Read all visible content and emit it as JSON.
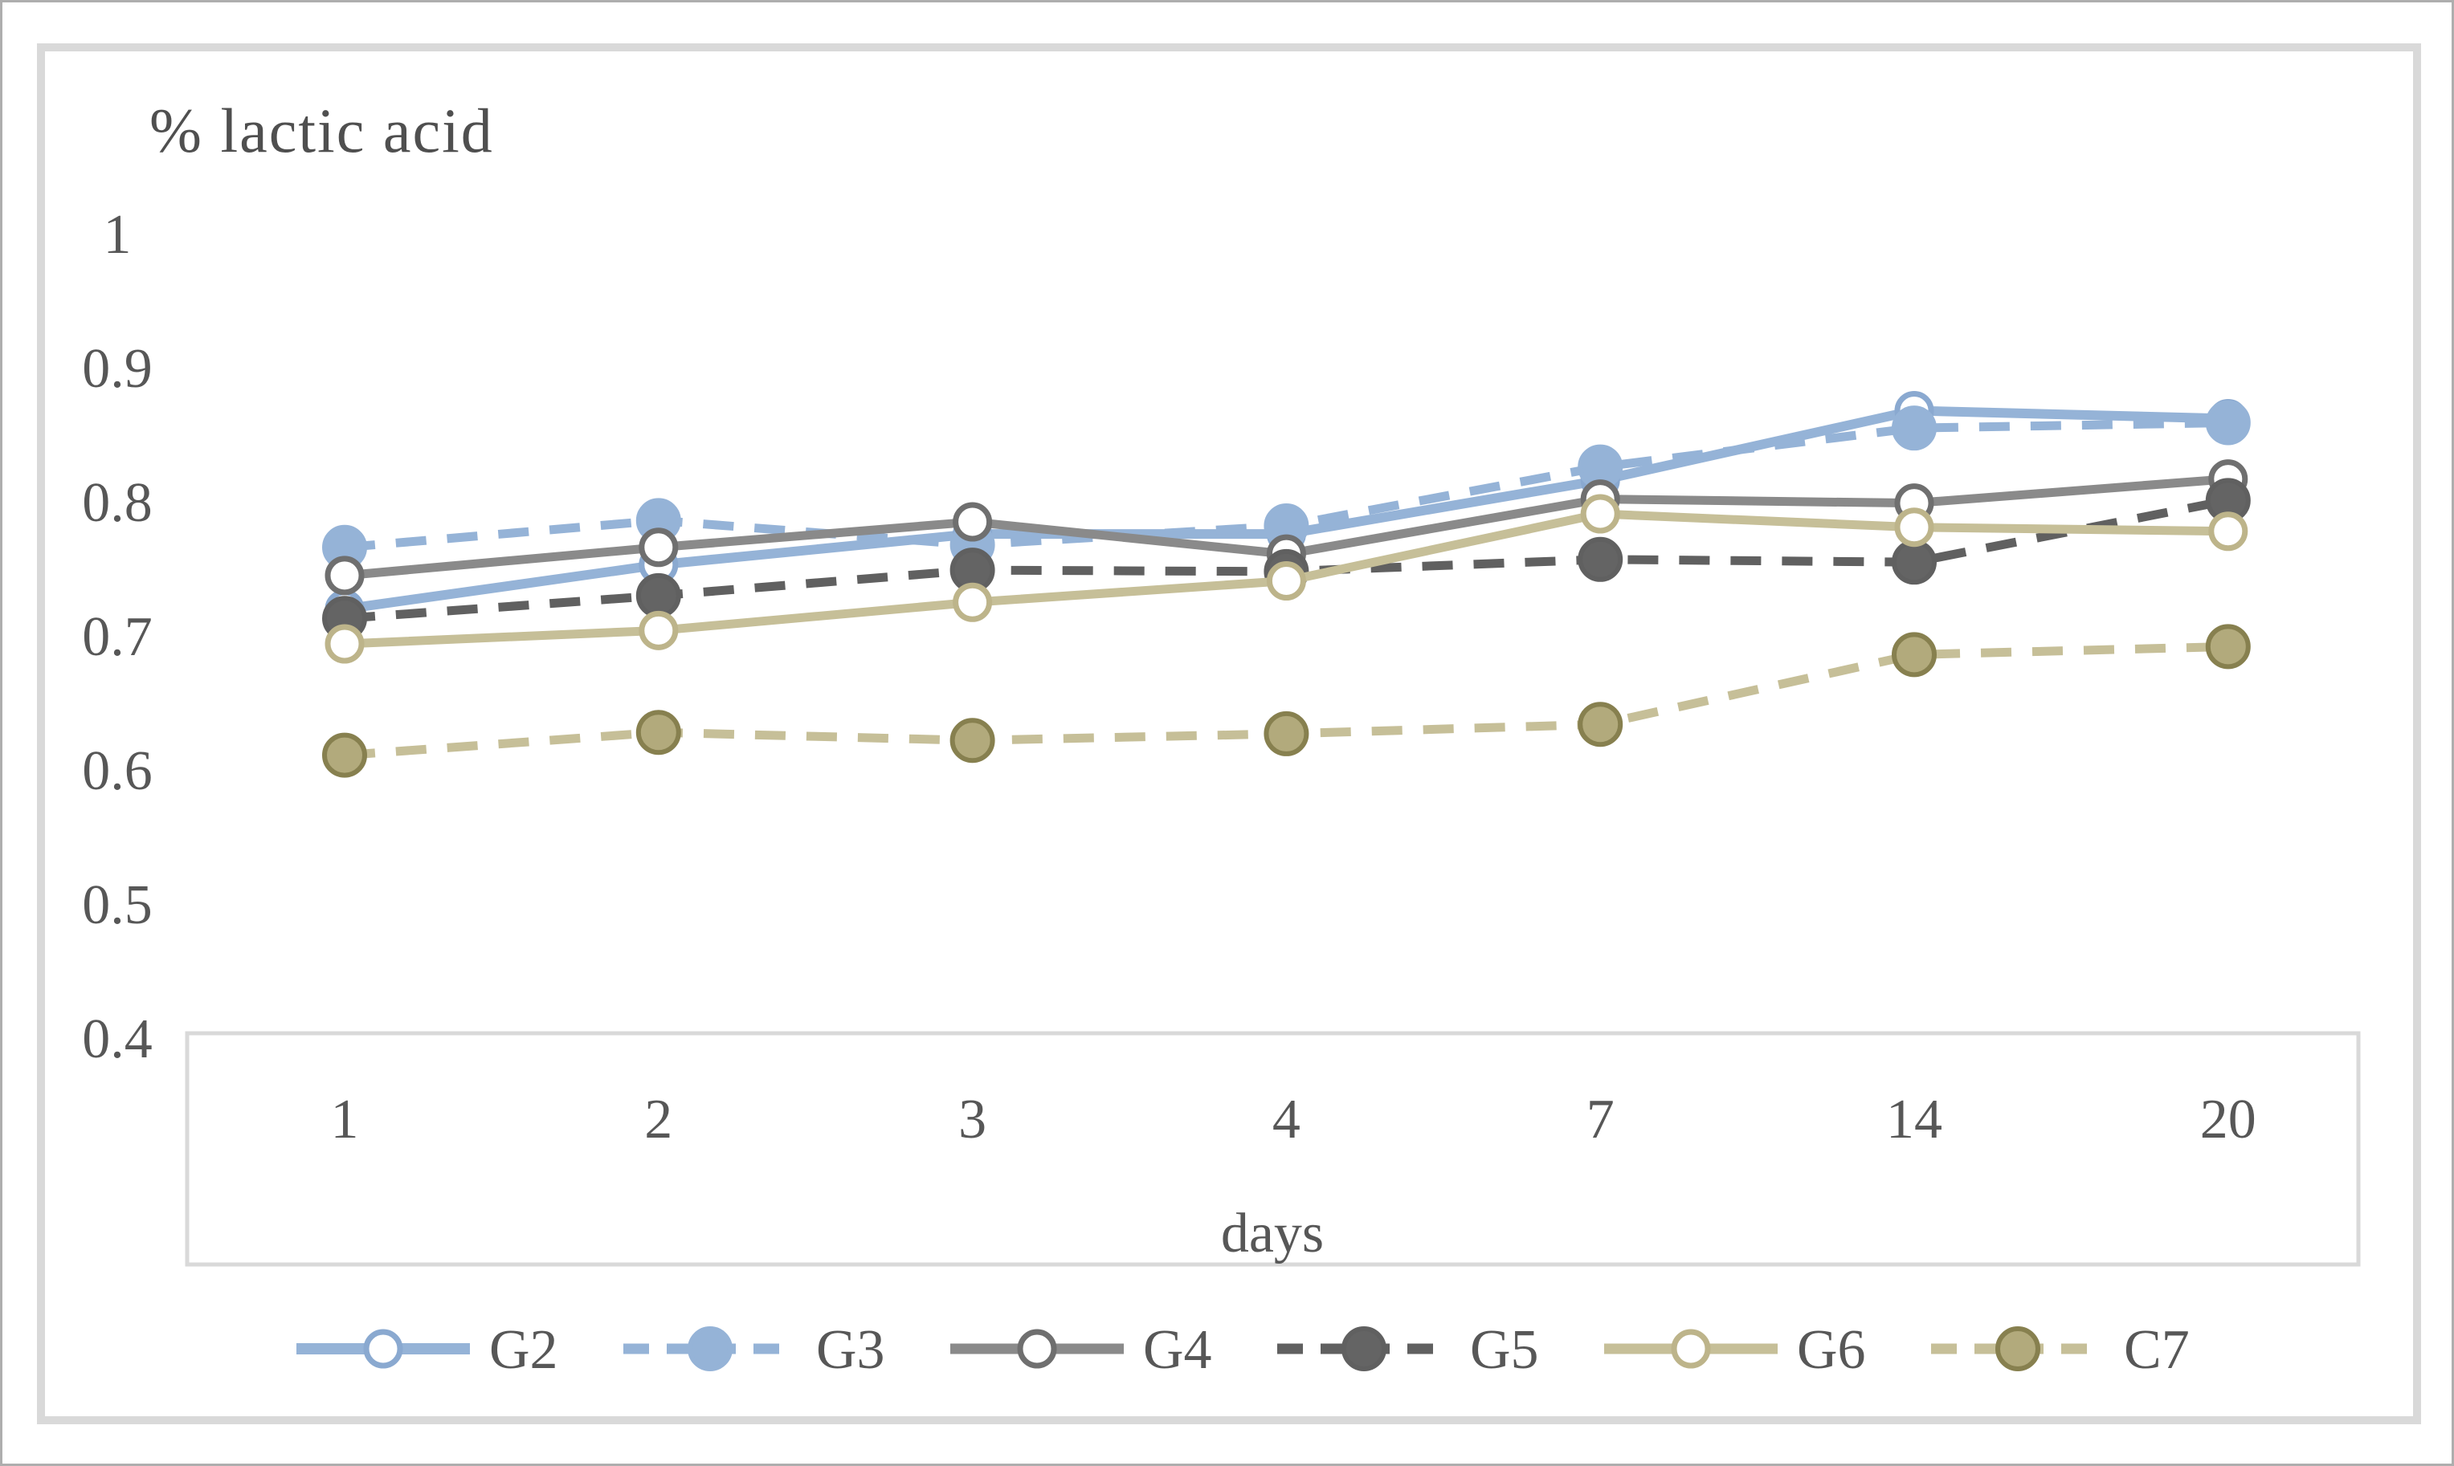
{
  "chart": {
    "title": "% lactic acid",
    "x_axis_label": "days"
  },
  "chart_data": {
    "type": "line",
    "title": "% lactic acid",
    "xlabel": "days",
    "ylabel": "% lactic acid",
    "categories": [
      "1",
      "2",
      "3",
      "4",
      "7",
      "14",
      "20"
    ],
    "y_ticks": [
      1,
      0.9,
      0.8,
      0.7,
      0.6,
      0.5,
      0.4
    ],
    "y_tick_labels": [
      "1",
      "0.9",
      "0.8",
      "0.7",
      "0.6",
      "0.5",
      "0.4"
    ],
    "ylim": [
      0.4,
      1.0
    ],
    "grid": false,
    "legend_position": "bottom",
    "text_color": "#575757",
    "frame_color": "#d9d9d9",
    "series": [
      {
        "name": "G2",
        "values": [
          0.72,
          0.753,
          0.776,
          0.776,
          0.816,
          0.868,
          0.862
        ],
        "color": "#95b3d7",
        "line_style": "solid",
        "line_width": 12,
        "marker": "open-circle",
        "marker_stroke": "#8aa9d0",
        "marker_fill": "#ffffff"
      },
      {
        "name": "G3",
        "values": [
          0.766,
          0.786,
          0.768,
          0.782,
          0.826,
          0.855,
          0.859
        ],
        "color": "#95b3d7",
        "line_style": "dashed",
        "line_width": 11,
        "marker": "filled-circle",
        "marker_stroke": "#95b3d7",
        "marker_fill": "#95b3d7"
      },
      {
        "name": "G4",
        "values": [
          0.745,
          0.766,
          0.785,
          0.761,
          0.802,
          0.799,
          0.817
        ],
        "color": "#8a8a8a",
        "line_style": "solid",
        "line_width": 11,
        "marker": "open-circle",
        "marker_stroke": "#6f6f6f",
        "marker_fill": "#ffffff"
      },
      {
        "name": "G5",
        "values": [
          0.713,
          0.73,
          0.749,
          0.748,
          0.757,
          0.755,
          0.801
        ],
        "color": "#606060",
        "line_style": "dashed",
        "line_width": 11,
        "marker": "filled-circle",
        "marker_stroke": "#606060",
        "marker_fill": "#646464"
      },
      {
        "name": "G6",
        "values": [
          0.694,
          0.704,
          0.725,
          0.741,
          0.791,
          0.781,
          0.778
        ],
        "color": "#c6bf98",
        "line_style": "solid",
        "line_width": 11,
        "marker": "open-circle",
        "marker_stroke": "#bdb48a",
        "marker_fill": "#ffffff"
      },
      {
        "name": "C7",
        "values": [
          0.611,
          0.628,
          0.622,
          0.627,
          0.634,
          0.686,
          0.692
        ],
        "color": "#c6bf98",
        "line_style": "dashed",
        "line_width": 11,
        "marker": "filled-circle",
        "marker_stroke": "#87804f",
        "marker_fill": "#b2aa7c"
      }
    ]
  }
}
